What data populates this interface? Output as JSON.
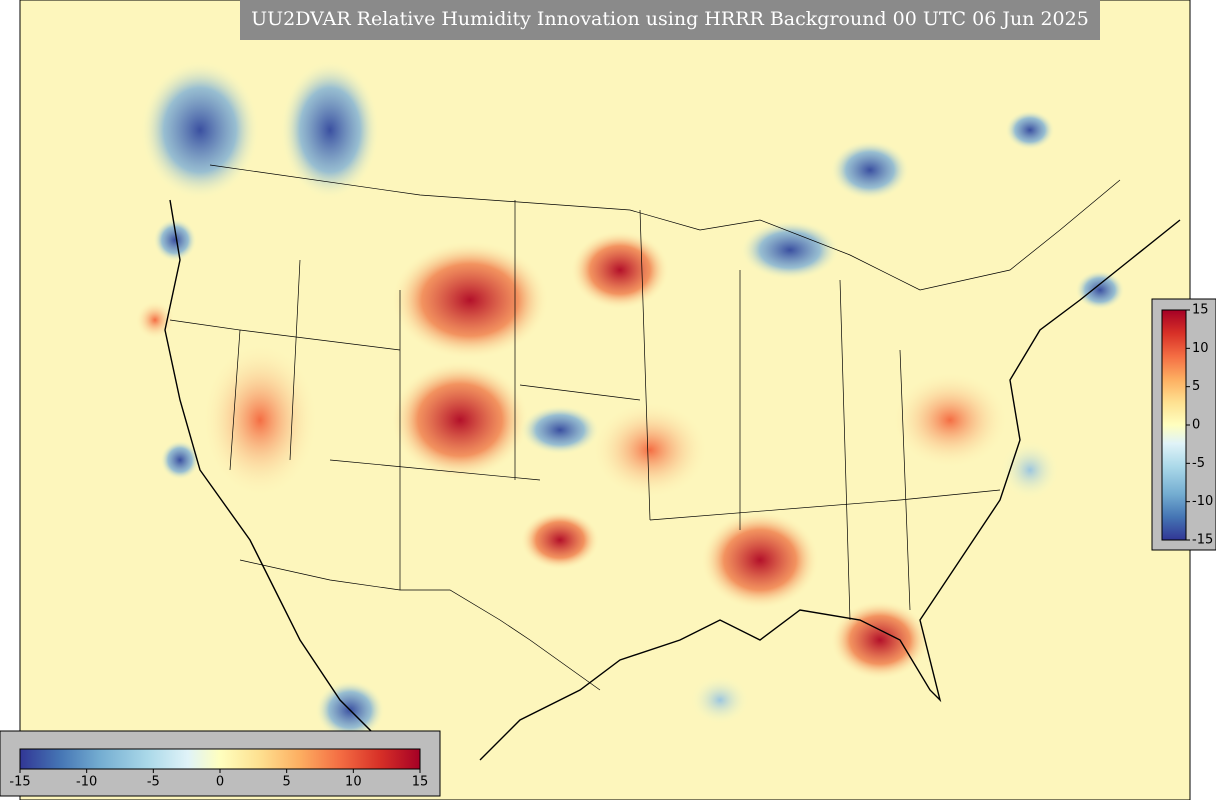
{
  "title": "UU2DVAR Relative Humidity Innovation using HRRR Background 00 UTC 06 Jun 2025",
  "colorbar_right": {
    "lim": [
      -15,
      15
    ],
    "ticks": [
      15,
      10,
      5,
      0,
      -5,
      -10,
      -15
    ]
  },
  "colorbar_bottom": {
    "lim": [
      -15,
      15
    ],
    "ticks": [
      -15,
      -10,
      -5,
      0,
      5,
      10,
      15
    ]
  }
}
